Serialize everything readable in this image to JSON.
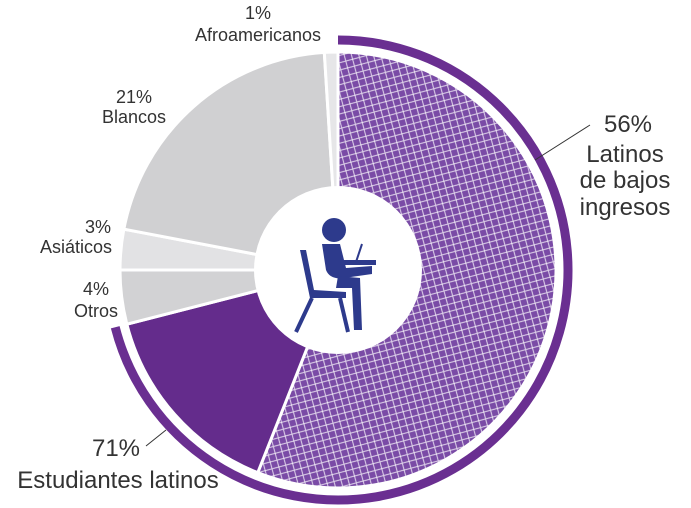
{
  "chart_data": {
    "type": "pie",
    "categories": [
      "Latinos de bajos ingresos",
      null,
      "Otros",
      "Asiáticos",
      "Blancos",
      "Afroamericanos"
    ],
    "values": [
      56,
      15,
      4,
      3,
      21,
      1
    ],
    "value_labels": [
      "56%",
      null,
      "4%",
      "3%",
      "21%",
      "1%"
    ],
    "colors": [
      "#7a4ba6",
      "#642c8c",
      "#d2d2d4",
      "#e2e2e4",
      "#d0d0d2",
      "#e6e6e8"
    ],
    "hatched": [
      true,
      false,
      false,
      false,
      false,
      false
    ],
    "outer_arc": {
      "name": "Estudiantes latinos",
      "value": 71,
      "value_label": "71%",
      "color": "#6a2f91"
    }
  }
}
